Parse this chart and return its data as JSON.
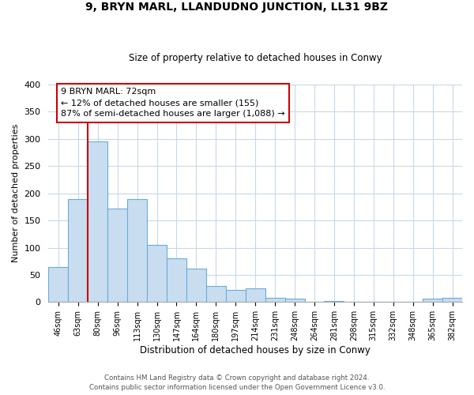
{
  "title": "9, BRYN MARL, LLANDUDNO JUNCTION, LL31 9BZ",
  "subtitle": "Size of property relative to detached houses in Conwy",
  "xlabel": "Distribution of detached houses by size in Conwy",
  "ylabel": "Number of detached properties",
  "bar_labels": [
    "46sqm",
    "63sqm",
    "80sqm",
    "96sqm",
    "113sqm",
    "130sqm",
    "147sqm",
    "164sqm",
    "180sqm",
    "197sqm",
    "214sqm",
    "231sqm",
    "248sqm",
    "264sqm",
    "281sqm",
    "298sqm",
    "315sqm",
    "332sqm",
    "348sqm",
    "365sqm",
    "382sqm"
  ],
  "bar_values": [
    65,
    190,
    295,
    172,
    190,
    105,
    80,
    62,
    30,
    22,
    25,
    8,
    6,
    0,
    2,
    0,
    0,
    0,
    0,
    7,
    8
  ],
  "bar_color": "#c9ddf0",
  "bar_edge_color": "#6aaed6",
  "highlight_color": "#cc0000",
  "annotation_text": "9 BRYN MARL: 72sqm\n← 12% of detached houses are smaller (155)\n87% of semi-detached houses are larger (1,088) →",
  "annotation_box_color": "#ffffff",
  "annotation_box_edge": "#cc0000",
  "ylim": [
    0,
    400
  ],
  "yticks": [
    0,
    50,
    100,
    150,
    200,
    250,
    300,
    350,
    400
  ],
  "footer1": "Contains HM Land Registry data © Crown copyright and database right 2024.",
  "footer2": "Contains public sector information licensed under the Open Government Licence v3.0.",
  "background_color": "#ffffff",
  "grid_color": "#c8d8ea"
}
